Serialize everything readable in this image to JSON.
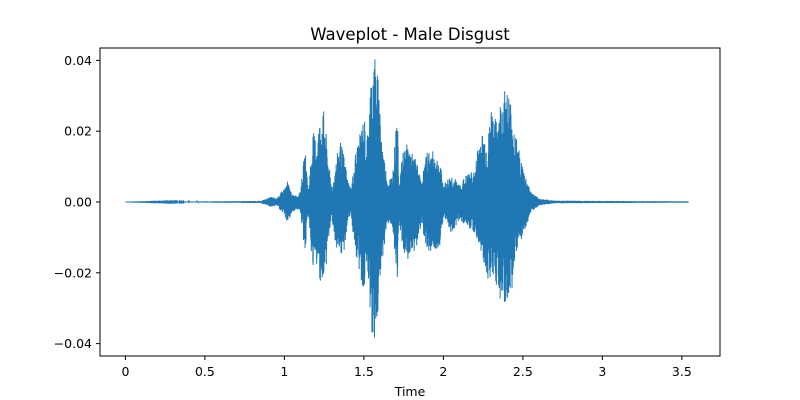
{
  "chart_data": {
    "type": "line",
    "title": "Waveplot - Male Disgust",
    "xlabel": "Time",
    "ylabel": "",
    "xlim": [
      -0.16,
      3.74
    ],
    "ylim": [
      -0.0435,
      0.0435
    ],
    "xticks": [
      0,
      0.5,
      1,
      1.5,
      2,
      2.5,
      3,
      3.5
    ],
    "xtick_labels": [
      "0",
      "0.5",
      "1",
      "1.5",
      "2",
      "2.5",
      "3",
      "3.5"
    ],
    "yticks": [
      -0.04,
      -0.02,
      0.0,
      0.02,
      0.04
    ],
    "ytick_labels": [
      "−0.04",
      "−0.02",
      "0.00",
      "0.02",
      "0.04"
    ],
    "grid": false,
    "legend": "none",
    "color": "#1f77b4",
    "series": [
      {
        "x": [
          0.0,
          0.85,
          0.88,
          0.9,
          0.92,
          0.95,
          1.0,
          1.02,
          1.05,
          1.08,
          1.1,
          1.13,
          1.15,
          1.18,
          1.2,
          1.23,
          1.25,
          1.28,
          1.3,
          1.33,
          1.35,
          1.38,
          1.4,
          1.42,
          1.45,
          1.48,
          1.5,
          1.52,
          1.55,
          1.57,
          1.59,
          1.62,
          1.65,
          1.68,
          1.71,
          1.72,
          1.75,
          1.78,
          1.8,
          1.83,
          1.86,
          1.9,
          1.95,
          1.98,
          2.0,
          2.05,
          2.1,
          2.15,
          2.2,
          2.22,
          2.25,
          2.28,
          2.3,
          2.33,
          2.35,
          2.38,
          2.4,
          2.43,
          2.45,
          2.5,
          2.55,
          2.6,
          2.7,
          3.0,
          3.54
        ],
        "upper": [
          0.0,
          0.0003,
          0.0008,
          0.0012,
          0.0015,
          0.001,
          0.004,
          0.006,
          0.002,
          0.002,
          0.003,
          0.015,
          0.003,
          0.02,
          0.018,
          0.025,
          0.026,
          0.01,
          0.004,
          0.013,
          0.018,
          0.012,
          0.006,
          0.004,
          0.015,
          0.02,
          0.025,
          0.018,
          0.04,
          0.042,
          0.035,
          0.015,
          0.006,
          0.008,
          0.026,
          0.006,
          0.015,
          0.017,
          0.014,
          0.012,
          0.006,
          0.015,
          0.014,
          0.011,
          0.005,
          0.008,
          0.005,
          0.008,
          0.009,
          0.018,
          0.02,
          0.017,
          0.028,
          0.023,
          0.027,
          0.032,
          0.033,
          0.028,
          0.02,
          0.01,
          0.003,
          0.001,
          0.0004,
          0.0003,
          0.0002
        ],
        "lower": [
          0.0,
          -0.0003,
          -0.0008,
          -0.0012,
          -0.0015,
          -0.001,
          -0.004,
          -0.006,
          -0.003,
          -0.002,
          -0.003,
          -0.015,
          -0.004,
          -0.02,
          -0.018,
          -0.023,
          -0.025,
          -0.01,
          -0.005,
          -0.015,
          -0.018,
          -0.013,
          -0.005,
          -0.004,
          -0.017,
          -0.022,
          -0.026,
          -0.016,
          -0.038,
          -0.041,
          -0.031,
          -0.015,
          -0.006,
          -0.007,
          -0.027,
          -0.005,
          -0.016,
          -0.017,
          -0.014,
          -0.014,
          -0.006,
          -0.014,
          -0.014,
          -0.012,
          -0.004,
          -0.009,
          -0.005,
          -0.007,
          -0.009,
          -0.012,
          -0.017,
          -0.022,
          -0.021,
          -0.023,
          -0.027,
          -0.031,
          -0.029,
          -0.025,
          -0.018,
          -0.01,
          -0.003,
          -0.001,
          -0.0004,
          -0.0003,
          -0.0002
        ]
      }
    ]
  }
}
